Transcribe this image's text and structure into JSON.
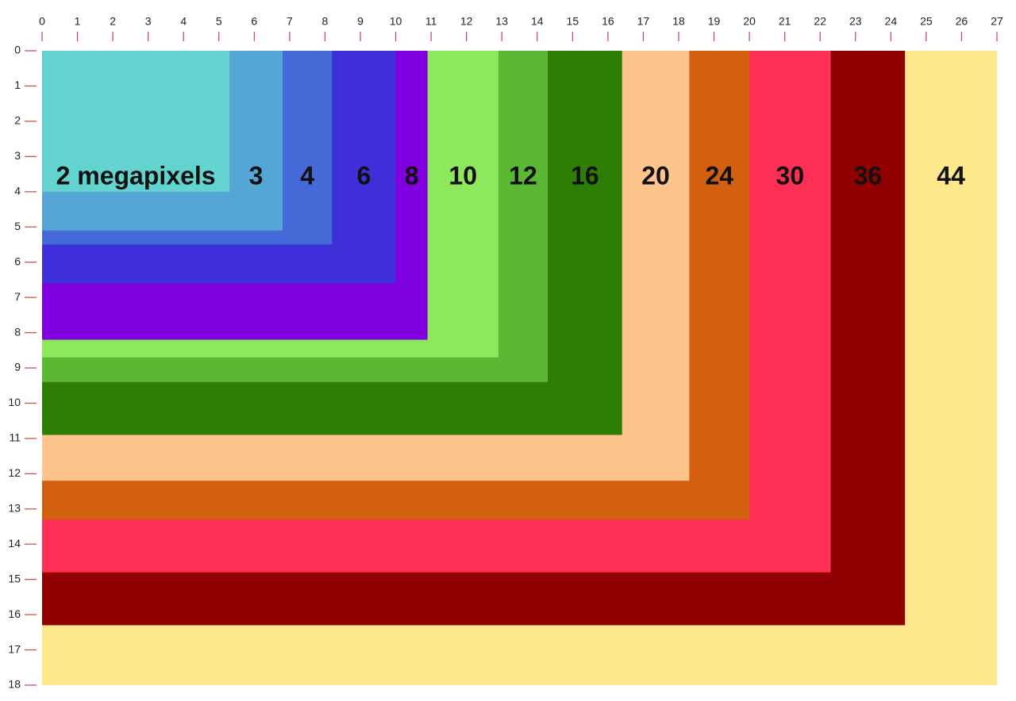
{
  "chart_data": {
    "type": "nested-rect",
    "categories": [
      "2 megapixels",
      "3",
      "4",
      "6",
      "8",
      "10",
      "12",
      "16",
      "20",
      "24",
      "30",
      "36",
      "44"
    ],
    "widths": [
      5.3,
      6.8,
      8.2,
      10.0,
      10.9,
      12.9,
      14.3,
      16.4,
      18.3,
      20.0,
      22.3,
      24.4,
      27.0
    ],
    "heights": [
      4.0,
      5.1,
      5.5,
      6.6,
      8.2,
      8.7,
      9.4,
      10.9,
      12.2,
      13.3,
      14.8,
      16.3,
      18.0
    ],
    "colors": [
      "#62d3cf",
      "#55a6d5",
      "#4669d8",
      "#3e2fd8",
      "#8000e0",
      "#8ee85d",
      "#5ab832",
      "#2e7d05",
      "#fdc48c",
      "#d35f10",
      "#fe2f55",
      "#910000",
      "#fde88e"
    ],
    "xlim": [
      0,
      27
    ],
    "ylim": [
      0,
      18
    ],
    "xticks": [
      0,
      1,
      2,
      3,
      4,
      5,
      6,
      7,
      8,
      9,
      10,
      11,
      12,
      13,
      14,
      15,
      16,
      17,
      18,
      19,
      20,
      21,
      22,
      23,
      24,
      25,
      26,
      27
    ],
    "yticks": [
      0,
      1,
      2,
      3,
      4,
      5,
      6,
      7,
      8,
      9,
      10,
      11,
      12,
      13,
      14,
      15,
      16,
      17,
      18
    ]
  }
}
